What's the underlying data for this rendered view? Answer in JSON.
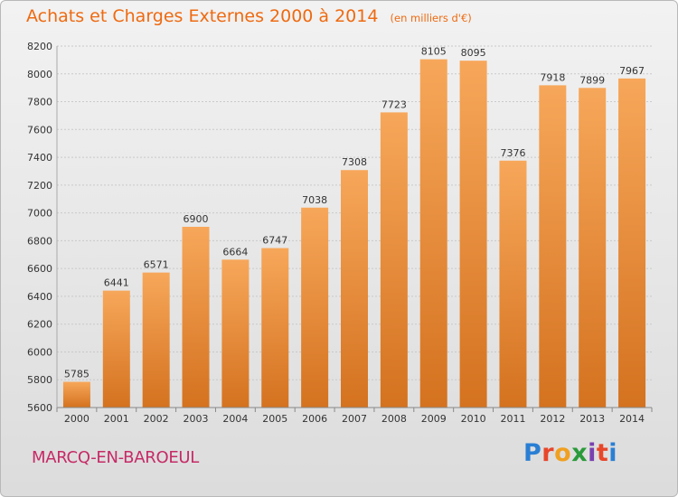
{
  "chart_data": {
    "type": "bar",
    "title": "Achats et Charges Externes 2000 à 2014",
    "subtitle": "(en milliers d'€)",
    "categories": [
      "2000",
      "2001",
      "2002",
      "2003",
      "2004",
      "2005",
      "2006",
      "2007",
      "2008",
      "2009",
      "2010",
      "2011",
      "2012",
      "2013",
      "2014"
    ],
    "values": [
      5785,
      6441,
      6571,
      6900,
      6664,
      6747,
      7038,
      7308,
      7723,
      8105,
      8095,
      7376,
      7918,
      7899,
      7967
    ],
    "ylim": [
      5600,
      8200
    ],
    "yticks": [
      5600,
      5800,
      6000,
      6200,
      6400,
      6600,
      6800,
      7000,
      7200,
      7400,
      7600,
      7800,
      8000,
      8200
    ],
    "grid": true,
    "bar_color_light": "#f7a75a",
    "bar_color_dark": "#d4721f"
  },
  "footer": {
    "city": "MARCQ-EN-BAROEUL",
    "logo_text": "Proxiti"
  },
  "colors": {
    "title": "#ee6a10",
    "city": "#c62a66"
  }
}
